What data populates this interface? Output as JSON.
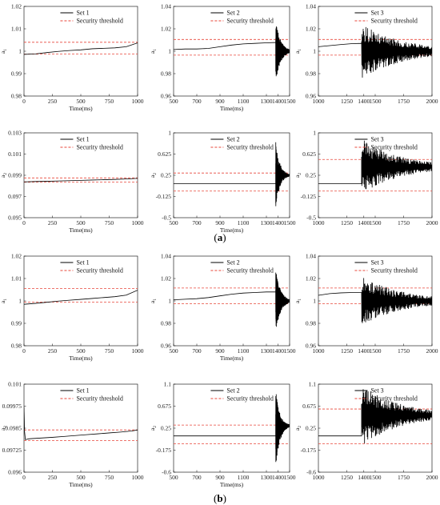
{
  "figure": {
    "panel_labels": [
      {
        "text": "(a)",
        "bold_part": "a"
      },
      {
        "text": "(b)",
        "bold_part": "b"
      }
    ]
  },
  "colors": {
    "series_line": "#000000",
    "threshold_line": "#e8473a",
    "axes": "#000000"
  },
  "chart_data": [
    {
      "id": "a-1",
      "type": "line",
      "xlabel": "Time(ms)",
      "ylabel": "a_1",
      "xlim": [
        0,
        1000
      ],
      "ylim": [
        0.98,
        1.02
      ],
      "xticks": [
        0,
        250,
        500,
        750,
        1000
      ],
      "xtick_labels": [
        "0",
        "250",
        "500",
        "750",
        "1000"
      ],
      "yticks": [
        0.98,
        0.99,
        1,
        1.01,
        1.02
      ],
      "ytick_labels": [
        "0.98",
        "0.99",
        "1",
        "1.01",
        "1.02"
      ],
      "legend": {
        "series": "Set 1",
        "threshold": "Security threshold",
        "placement": "top"
      },
      "series": [
        {
          "name": "Set 1",
          "x": [
            0,
            100,
            200,
            300,
            400,
            500,
            600,
            700,
            800,
            900,
            1000
          ],
          "y": [
            0.9986,
            0.9988,
            0.9994,
            0.9999,
            1.0003,
            1.0006,
            1.0011,
            1.0013,
            1.0015,
            1.002,
            1.0037
          ]
        }
      ],
      "thresholds": [
        1.004,
        0.9987
      ],
      "oscillation": null
    },
    {
      "id": "a-2",
      "type": "line",
      "xlabel": "Time(ms)",
      "ylabel": "a_1",
      "xlim": [
        500,
        1500
      ],
      "ylim": [
        0.96,
        1.04
      ],
      "xticks": [
        500,
        700,
        900,
        1100,
        1300,
        1400,
        1500
      ],
      "xtick_labels": [
        "500",
        "700",
        "900",
        "1100",
        "1300",
        "1400",
        "1500"
      ],
      "yticks": [
        0.96,
        0.98,
        1,
        1.02,
        1.04
      ],
      "ytick_labels": [
        "0.96",
        "0.98",
        "1",
        "1.02",
        "1.04"
      ],
      "legend": {
        "series": "Set 2",
        "threshold": "Security threshold",
        "placement": "top"
      },
      "series": [
        {
          "name": "Set 2",
          "x": [
            500,
            600,
            700,
            800,
            900,
            1000,
            1100,
            1200,
            1300,
            1380
          ],
          "y": [
            1.0015,
            1.002,
            1.002,
            1.0025,
            1.004,
            1.0055,
            1.0065,
            1.007,
            1.0075,
            1.0078
          ]
        }
      ],
      "thresholds": [
        1.0105,
        0.9965
      ],
      "oscillation": {
        "start": 1380,
        "end": 1500,
        "center": 1.0,
        "amplitude": 0.028,
        "decay": 0.35,
        "settle": 1.0
      }
    },
    {
      "id": "a-3",
      "type": "line",
      "xlabel": "",
      "ylabel": "a_1",
      "xlim": [
        1000,
        2000
      ],
      "ylim": [
        0.96,
        1.04
      ],
      "xticks": [
        1000,
        1250,
        1400,
        1500,
        1750,
        2000
      ],
      "xtick_labels": [
        "1000",
        "1250",
        "1400",
        "1500",
        "1750",
        "2000"
      ],
      "yticks": [
        0.96,
        0.98,
        1,
        1.02,
        1.04
      ],
      "ytick_labels": [
        "0.96",
        "0.98",
        "1",
        "1.02",
        "1.04"
      ],
      "legend": {
        "series": "Set 3",
        "threshold": "Security threshold",
        "placement": "top"
      },
      "series": [
        {
          "name": "Set 3",
          "x": [
            1000,
            1100,
            1200,
            1300,
            1380
          ],
          "y": [
            1.004,
            1.005,
            1.006,
            1.0068,
            1.007
          ]
        }
      ],
      "thresholds": [
        1.0105,
        0.9965
      ],
      "oscillation": {
        "start": 1380,
        "end": 2000,
        "center": 1.0,
        "amplitude": 0.025,
        "decay": 0.6,
        "settle": 1.0
      }
    },
    {
      "id": "a-4",
      "type": "line",
      "xlabel": "Time(ms)",
      "ylabel": "a_2",
      "xlim": [
        0,
        1000
      ],
      "ylim": [
        0.095,
        0.103
      ],
      "xticks": [
        0,
        250,
        500,
        750,
        1000
      ],
      "xtick_labels": [
        "0",
        "250",
        "500",
        "750",
        "1000"
      ],
      "yticks": [
        0.095,
        0.097,
        0.099,
        0.101,
        0.103
      ],
      "ytick_labels": [
        "0.095",
        "0.097",
        "0.099",
        "0.101",
        "0.103"
      ],
      "legend": {
        "series": "Set 1",
        "threshold": "Security threshold",
        "placement": "top"
      },
      "series": [
        {
          "name": "Set 1",
          "x": [
            0,
            100,
            200,
            300,
            400,
            500,
            600,
            700,
            800,
            900,
            1000
          ],
          "y": [
            0.09838,
            0.09841,
            0.09843,
            0.09846,
            0.09849,
            0.09852,
            0.09855,
            0.09858,
            0.09861,
            0.09865,
            0.09871
          ]
        }
      ],
      "thresholds": [
        0.09875,
        0.09835
      ],
      "oscillation": null
    },
    {
      "id": "a-5",
      "type": "line",
      "xlabel": "Time(ms)",
      "ylabel": "a_2",
      "xlim": [
        500,
        1500
      ],
      "ylim": [
        -0.5,
        1
      ],
      "xticks": [
        500,
        700,
        900,
        1100,
        1300,
        1400,
        1500
      ],
      "xtick_labels": [
        "500",
        "700",
        "900",
        "1100",
        "1300",
        "1400",
        "1500"
      ],
      "yticks": [
        -0.5,
        -0.125,
        0.25,
        0.625,
        1
      ],
      "ytick_labels": [
        "-0.5",
        "-0.125",
        "0.25",
        "0.625",
        "1"
      ],
      "legend": {
        "series": "Set 2",
        "threshold": "Security threshold",
        "placement": "top"
      },
      "series": [
        {
          "name": "Set 2",
          "x": [
            500,
            1380
          ],
          "y": [
            0.1,
            0.1
          ]
        }
      ],
      "thresholds": [
        0.29,
        -0.03
      ],
      "oscillation": {
        "start": 1380,
        "end": 1500,
        "center": 0.25,
        "amplitude": 0.6,
        "decay": 0.3,
        "settle": 0.25
      }
    },
    {
      "id": "a-6",
      "type": "line",
      "xlabel": "",
      "ylabel": "a_2",
      "xlim": [
        1000,
        2000
      ],
      "ylim": [
        -0.5,
        1
      ],
      "xticks": [
        1000,
        1250,
        1400,
        1500,
        1750,
        2000
      ],
      "xtick_labels": [
        "1000",
        "1250",
        "1400",
        "1500",
        "1750",
        "2000"
      ],
      "yticks": [
        -0.5,
        -0.125,
        0.25,
        0.625,
        1
      ],
      "ytick_labels": [
        "-0.5",
        "-0.125",
        "0.25",
        "0.625",
        "1"
      ],
      "legend": {
        "series": "Set 3",
        "threshold": "Security threshold",
        "placement": "top"
      },
      "series": [
        {
          "name": "Set 3",
          "x": [
            1000,
            1380
          ],
          "y": [
            0.1,
            0.1
          ]
        }
      ],
      "thresholds": [
        0.53,
        -0.03
      ],
      "oscillation": {
        "start": 1380,
        "end": 2000,
        "center": 0.4,
        "amplitude": 0.5,
        "decay": 0.55,
        "settle": 0.4
      }
    },
    {
      "id": "b-1",
      "type": "line",
      "xlabel": "Time(ms)",
      "ylabel": "a_1",
      "xlim": [
        0,
        1000
      ],
      "ylim": [
        0.98,
        1.02
      ],
      "xticks": [
        0,
        250,
        500,
        750,
        1000
      ],
      "xtick_labels": [
        "0",
        "250",
        "500",
        "750",
        "1000"
      ],
      "yticks": [
        0.98,
        0.99,
        1,
        1.01,
        1.02
      ],
      "ytick_labels": [
        "0.98",
        "0.99",
        "1",
        "1.01",
        "1.02"
      ],
      "legend": {
        "series": "Set 1",
        "threshold": "Security threshold",
        "placement": "top"
      },
      "series": [
        {
          "name": "Set 1",
          "x": [
            0,
            100,
            200,
            300,
            400,
            500,
            600,
            700,
            800,
            900,
            1000
          ],
          "y": [
            0.9985,
            0.9989,
            0.9994,
            0.9999,
            1.0003,
            1.0007,
            1.0011,
            1.0015,
            1.0019,
            1.0026,
            1.0048
          ]
        }
      ],
      "thresholds": [
        1.0055,
        0.9995
      ],
      "oscillation": null
    },
    {
      "id": "b-2",
      "type": "line",
      "xlabel": "Time(ms)",
      "ylabel": "a_1",
      "xlim": [
        500,
        1500
      ],
      "ylim": [
        0.96,
        1.04
      ],
      "xticks": [
        500,
        700,
        900,
        1100,
        1300,
        1400,
        1500
      ],
      "xtick_labels": [
        "500",
        "700",
        "900",
        "1100",
        "1300",
        "1400",
        "1500"
      ],
      "yticks": [
        0.96,
        0.98,
        1,
        1.02,
        1.04
      ],
      "ytick_labels": [
        "0.96",
        "0.98",
        "1",
        "1.02",
        "1.04"
      ],
      "legend": {
        "series": "Set 2",
        "threshold": "Security threshold",
        "placement": "top"
      },
      "series": [
        {
          "name": "Set 2",
          "x": [
            500,
            600,
            700,
            800,
            900,
            1000,
            1100,
            1200,
            1300,
            1380
          ],
          "y": [
            1.001,
            1.0015,
            1.002,
            1.003,
            1.0045,
            1.006,
            1.007,
            1.0075,
            1.008,
            1.008
          ]
        }
      ],
      "thresholds": [
        1.0115,
        0.9975
      ],
      "oscillation": {
        "start": 1380,
        "end": 1500,
        "center": 1.0,
        "amplitude": 0.028,
        "decay": 0.35,
        "settle": 1.0
      }
    },
    {
      "id": "b-3",
      "type": "line",
      "xlabel": "",
      "ylabel": "a_1",
      "xlim": [
        1000,
        2000
      ],
      "ylim": [
        0.96,
        1.04
      ],
      "xticks": [
        1000,
        1250,
        1400,
        1500,
        1750,
        2000
      ],
      "xtick_labels": [
        "1000",
        "1250",
        "1400",
        "1500",
        "1750",
        "2000"
      ],
      "yticks": [
        0.96,
        0.98,
        1,
        1.02,
        1.04
      ],
      "ytick_labels": [
        "0.96",
        "0.98",
        "1",
        "1.02",
        "1.04"
      ],
      "legend": {
        "series": "Set 3",
        "threshold": "Security threshold",
        "placement": "top"
      },
      "series": [
        {
          "name": "Set 3",
          "x": [
            1000,
            1100,
            1200,
            1300,
            1380
          ],
          "y": [
            1.005,
            1.0065,
            1.0072,
            1.0075,
            1.0075
          ]
        }
      ],
      "thresholds": [
        1.0115,
        0.9975
      ],
      "oscillation": {
        "start": 1380,
        "end": 2000,
        "center": 1.0,
        "amplitude": 0.022,
        "decay": 0.6,
        "settle": 1.0
      }
    },
    {
      "id": "b-4",
      "type": "line",
      "xlabel": "Time(ms)",
      "ylabel": "a_2",
      "xlim": [
        0,
        1000
      ],
      "ylim": [
        0.096,
        0.101
      ],
      "xticks": [
        0,
        250,
        500,
        750,
        1000
      ],
      "xtick_labels": [
        "0",
        "250",
        "500",
        "750",
        "1000"
      ],
      "yticks": [
        0.096,
        0.09725,
        0.0985,
        0.09975,
        0.101
      ],
      "ytick_labels": [
        "0.096",
        "0.09725",
        "0.0985",
        "0.09975",
        "0.101"
      ],
      "legend": {
        "series": "Set 1",
        "threshold": "Security threshold",
        "placement": "top"
      },
      "series": [
        {
          "name": "Set 1",
          "x": [
            0,
            5,
            12,
            50,
            150,
            250,
            350,
            450,
            550,
            650,
            750,
            850,
            950,
            1000
          ],
          "y": [
            0.0997,
            0.0983,
            0.09785,
            0.0979,
            0.09794,
            0.09798,
            0.09803,
            0.09808,
            0.09813,
            0.09818,
            0.09823,
            0.09828,
            0.09834,
            0.0984
          ]
        }
      ],
      "thresholds": [
        0.0984,
        0.0978
      ],
      "oscillation": null
    },
    {
      "id": "b-5",
      "type": "line",
      "xlabel": "Time(ms)",
      "ylabel": "a_2",
      "xlim": [
        500,
        1500
      ],
      "ylim": [
        -0.6,
        1.1
      ],
      "xticks": [
        500,
        700,
        900,
        1100,
        1300,
        1400,
        1500
      ],
      "xtick_labels": [
        "500",
        "700",
        "900",
        "1100",
        "1300",
        "1400",
        "1500"
      ],
      "yticks": [
        -0.6,
        -0.175,
        0.25,
        0.675,
        1.1
      ],
      "ytick_labels": [
        "-0.6",
        "-0.175",
        "0.25",
        "0.675",
        "1.1"
      ],
      "legend": {
        "series": "Set 2",
        "threshold": "Security threshold",
        "placement": "top"
      },
      "series": [
        {
          "name": "Set 2",
          "x": [
            500,
            1380
          ],
          "y": [
            0.1,
            0.1
          ]
        }
      ],
      "thresholds": [
        0.31,
        -0.05
      ],
      "oscillation": {
        "start": 1380,
        "end": 1500,
        "center": 0.25,
        "amplitude": 0.75,
        "decay": 0.3,
        "settle": 0.3
      }
    },
    {
      "id": "b-6",
      "type": "line",
      "xlabel": "",
      "ylabel": "a_2",
      "xlim": [
        1000,
        2000
      ],
      "ylim": [
        -0.6,
        1.1
      ],
      "xticks": [
        1000,
        1250,
        1400,
        1500,
        1750,
        2000
      ],
      "xtick_labels": [
        "1000",
        "1250",
        "1400",
        "1500",
        "1750",
        "2000"
      ],
      "yticks": [
        -0.6,
        -0.175,
        0.25,
        0.675,
        1.1
      ],
      "ytick_labels": [
        "-0.6",
        "-0.175",
        "0.25",
        "0.675",
        "1.1"
      ],
      "legend": {
        "series": "Set 3",
        "threshold": "Security threshold",
        "placement": "top"
      },
      "series": [
        {
          "name": "Set 3",
          "x": [
            1000,
            1380
          ],
          "y": [
            0.1,
            0.1
          ]
        }
      ],
      "thresholds": [
        0.62,
        -0.05
      ],
      "oscillation": {
        "start": 1380,
        "end": 2000,
        "center": 0.5,
        "amplitude": 0.6,
        "decay": 0.55,
        "settle": 0.5
      }
    }
  ]
}
